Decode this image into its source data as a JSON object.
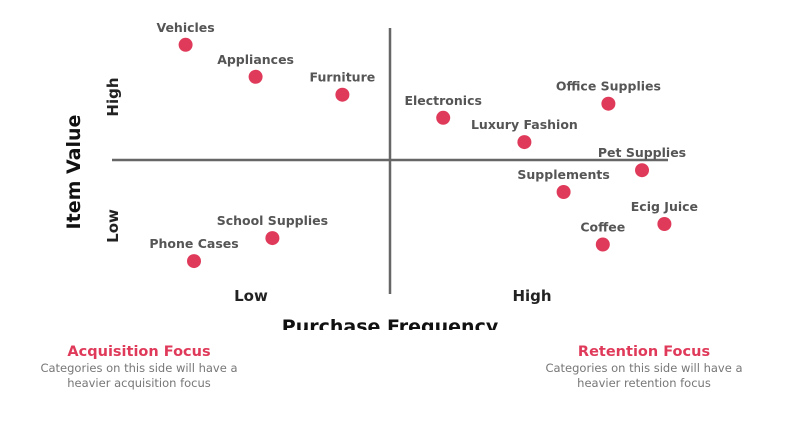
{
  "chart_data": {
    "type": "scatter",
    "title": "",
    "xlabel": "Purchase Frequency",
    "ylabel": "Item Value",
    "x_ticks": [
      "Low",
      "High"
    ],
    "y_ticks": [
      "Low",
      "High"
    ],
    "xlim": [
      -10,
      10
    ],
    "ylim": [
      -10,
      10
    ],
    "grid": false,
    "colors": {
      "point": "#e03a5a",
      "axis": "#666666",
      "accent": "#e03a5a"
    },
    "points": [
      {
        "label": "Vehicles",
        "x": -7.3,
        "y": 9.0
      },
      {
        "label": "Appliances",
        "x": -4.8,
        "y": 6.5
      },
      {
        "label": "Furniture",
        "x": -1.7,
        "y": 5.1
      },
      {
        "label": "Electronics",
        "x": 1.9,
        "y": 3.3
      },
      {
        "label": "Office Supplies",
        "x": 7.8,
        "y": 4.4
      },
      {
        "label": "Luxury Fashion",
        "x": 4.8,
        "y": 1.4
      },
      {
        "label": "Pet Supplies",
        "x": 9.0,
        "y": -0.8
      },
      {
        "label": "Supplements",
        "x": 6.2,
        "y": -2.5
      },
      {
        "label": "Ecig Juice",
        "x": 9.8,
        "y": -5.0
      },
      {
        "label": "Coffee",
        "x": 7.6,
        "y": -6.6
      },
      {
        "label": "School Supplies",
        "x": -4.2,
        "y": -6.1
      },
      {
        "label": "Phone Cases",
        "x": -7.0,
        "y": -7.9
      }
    ]
  },
  "left_focus": {
    "title": "Acquisition Focus",
    "desc_line1": "Categories on this side will have a",
    "desc_line2": "heavier acquisition focus"
  },
  "right_focus": {
    "title": "Retention Focus",
    "desc_line1": "Categories on this side will have a",
    "desc_line2": "heavier retention focus"
  }
}
